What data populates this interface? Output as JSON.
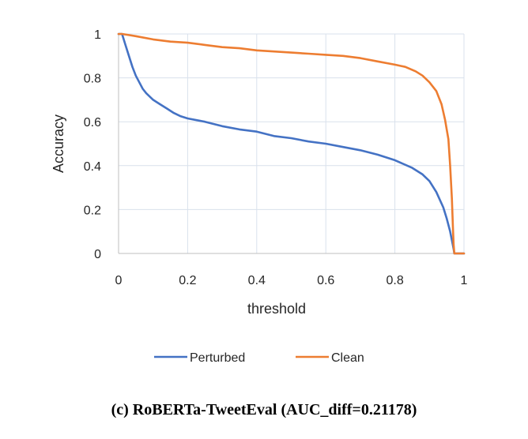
{
  "caption": "(c) RoBERTa-TweetEval (AUC_diff=0.21178)",
  "chart_data": {
    "type": "line",
    "title": "",
    "xlabel": "threshold",
    "ylabel": "Accuracy",
    "xlim": [
      0,
      1
    ],
    "ylim": [
      0,
      1
    ],
    "xticks": [
      "0",
      "0.2",
      "0.4",
      "0.6",
      "0.8",
      "1"
    ],
    "yticks": [
      "0",
      "0.2",
      "0.4",
      "0.6",
      "0.8",
      "1"
    ],
    "grid": true,
    "legend_position": "bottom",
    "series": [
      {
        "name": "Perturbed",
        "color": "#4472C4",
        "x": [
          0,
          0.01,
          0.02,
          0.03,
          0.04,
          0.05,
          0.06,
          0.07,
          0.08,
          0.1,
          0.12,
          0.14,
          0.16,
          0.18,
          0.2,
          0.25,
          0.3,
          0.35,
          0.4,
          0.45,
          0.5,
          0.55,
          0.6,
          0.65,
          0.7,
          0.75,
          0.8,
          0.85,
          0.88,
          0.9,
          0.92,
          0.94,
          0.95,
          0.96,
          0.965,
          0.97,
          0.972,
          1.0
        ],
        "values": [
          1.0,
          1.0,
          0.95,
          0.9,
          0.85,
          0.81,
          0.78,
          0.75,
          0.73,
          0.7,
          0.68,
          0.66,
          0.64,
          0.625,
          0.615,
          0.6,
          0.58,
          0.565,
          0.555,
          0.535,
          0.525,
          0.51,
          0.5,
          0.485,
          0.47,
          0.45,
          0.425,
          0.39,
          0.36,
          0.33,
          0.28,
          0.21,
          0.16,
          0.1,
          0.06,
          0.02,
          0.0,
          0.0
        ]
      },
      {
        "name": "Clean",
        "color": "#ED7D31",
        "x": [
          0,
          0.01,
          0.03,
          0.05,
          0.1,
          0.15,
          0.2,
          0.25,
          0.3,
          0.35,
          0.4,
          0.45,
          0.5,
          0.55,
          0.6,
          0.65,
          0.7,
          0.75,
          0.8,
          0.83,
          0.86,
          0.88,
          0.9,
          0.92,
          0.935,
          0.945,
          0.955,
          0.96,
          0.965,
          0.968,
          0.97,
          0.972,
          1.0
        ],
        "values": [
          1.0,
          1.0,
          0.995,
          0.99,
          0.975,
          0.965,
          0.96,
          0.95,
          0.94,
          0.935,
          0.925,
          0.92,
          0.915,
          0.91,
          0.905,
          0.9,
          0.89,
          0.875,
          0.86,
          0.85,
          0.83,
          0.81,
          0.78,
          0.74,
          0.68,
          0.61,
          0.52,
          0.4,
          0.25,
          0.12,
          0.04,
          0.0,
          0.0
        ]
      }
    ]
  }
}
